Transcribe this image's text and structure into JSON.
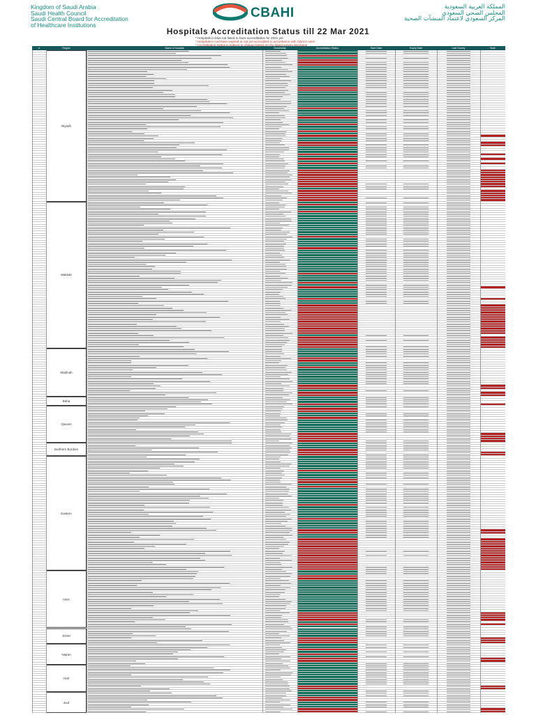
{
  "header": {
    "org_en": [
      "Kingdom of Saudi Arabia",
      "Saudi Health Council",
      "Saudi Central Board for Accreditation",
      "of Healthcare Institutions"
    ],
    "org_ar": [
      "المملكة العربية السعودية",
      "المجلس الصحي السعودي",
      "المركز السعودي لاعتماد المنشآت الصحية"
    ],
    "logo_text": "CBAHI"
  },
  "title": "Hospitals Accreditation Status till 22 Mar 2021",
  "notes": [
    {
      "text": "* Hospitals in blue not listed to have accreditation for 2021 yet",
      "tone": "dark"
    },
    {
      "text": "* Hospitals in red have expired or not yet accredited in accordance with CBAHI rules",
      "tone": "red"
    },
    {
      "text": "* Accreditation status is subject to change based on the latest survey decisions",
      "tone": "red"
    }
  ],
  "table": {
    "headers": [
      "#",
      "Region",
      "Name of hospital",
      "Ownership",
      "Accreditation Status",
      "Start Date",
      "Expiry Date",
      "Last Survey",
      "Note"
    ],
    "regions": [
      {
        "name": "Riyadh",
        "rows": 66
      },
      {
        "name": "Makkah",
        "rows": 64
      },
      {
        "name": "Madinah",
        "rows": 21
      },
      {
        "name": "Baha",
        "rows": 4
      },
      {
        "name": "Qassim",
        "rows": 16
      },
      {
        "name": "Northern Borders",
        "rows": 6
      },
      {
        "name": "Eastern",
        "rows": 50
      },
      {
        "name": "Assir",
        "rows": 25
      },
      {
        "name": "Jazan",
        "rows": 7
      },
      {
        "name": "Najran",
        "rows": 9
      },
      {
        "name": "Hail",
        "rows": 12
      },
      {
        "name": "Jouf",
        "rows": 9
      }
    ]
  },
  "colors": {
    "accredited": "#0d6e5a",
    "expired": "#b22222",
    "header": "#17595b",
    "brand": "#1a8a80",
    "logo_accent": "#e5533d"
  }
}
